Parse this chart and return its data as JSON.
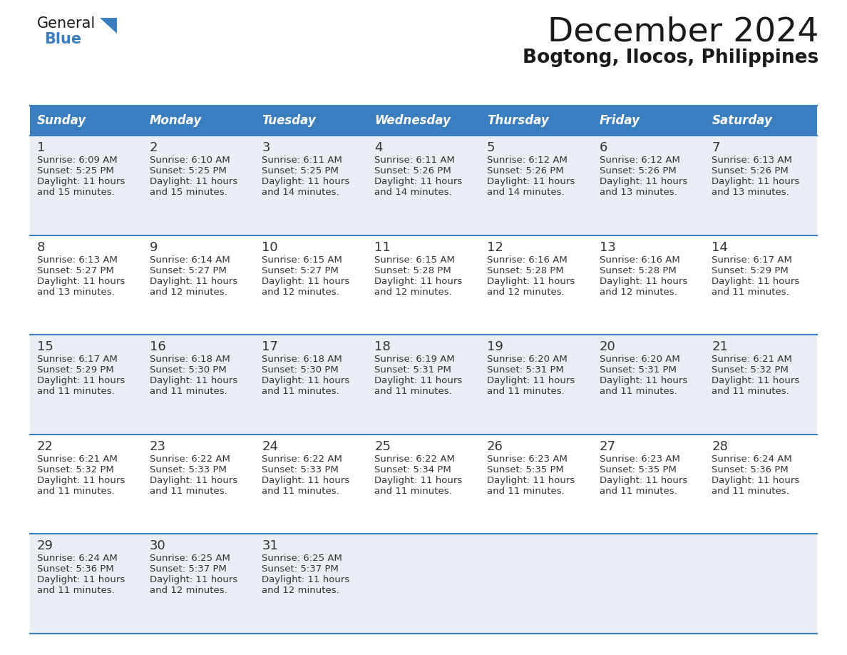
{
  "title": "December 2024",
  "subtitle": "Bogtong, Ilocos, Philippines",
  "days_of_week": [
    "Sunday",
    "Monday",
    "Tuesday",
    "Wednesday",
    "Thursday",
    "Friday",
    "Saturday"
  ],
  "header_bg": "#3a7ebf",
  "header_text_color": "#ffffff",
  "row_bg_odd": "#e8eef4",
  "row_bg_even": "#ffffff",
  "cell_text_color": "#333333",
  "grid_color": "#3a7ebf",
  "title_color": "#1a1a1a",
  "subtitle_color": "#1a1a1a",
  "blue_color": "#3a7ebf",
  "calendar": [
    [
      {
        "day": 1,
        "sunrise": "6:09 AM",
        "sunset": "5:25 PM",
        "daylight": "11 hours",
        "daylight2": "and 15 minutes."
      },
      {
        "day": 2,
        "sunrise": "6:10 AM",
        "sunset": "5:25 PM",
        "daylight": "11 hours",
        "daylight2": "and 15 minutes."
      },
      {
        "day": 3,
        "sunrise": "6:11 AM",
        "sunset": "5:25 PM",
        "daylight": "11 hours",
        "daylight2": "and 14 minutes."
      },
      {
        "day": 4,
        "sunrise": "6:11 AM",
        "sunset": "5:26 PM",
        "daylight": "11 hours",
        "daylight2": "and 14 minutes."
      },
      {
        "day": 5,
        "sunrise": "6:12 AM",
        "sunset": "5:26 PM",
        "daylight": "11 hours",
        "daylight2": "and 14 minutes."
      },
      {
        "day": 6,
        "sunrise": "6:12 AM",
        "sunset": "5:26 PM",
        "daylight": "11 hours",
        "daylight2": "and 13 minutes."
      },
      {
        "day": 7,
        "sunrise": "6:13 AM",
        "sunset": "5:26 PM",
        "daylight": "11 hours",
        "daylight2": "and 13 minutes."
      }
    ],
    [
      {
        "day": 8,
        "sunrise": "6:13 AM",
        "sunset": "5:27 PM",
        "daylight": "11 hours",
        "daylight2": "and 13 minutes."
      },
      {
        "day": 9,
        "sunrise": "6:14 AM",
        "sunset": "5:27 PM",
        "daylight": "11 hours",
        "daylight2": "and 12 minutes."
      },
      {
        "day": 10,
        "sunrise": "6:15 AM",
        "sunset": "5:27 PM",
        "daylight": "11 hours",
        "daylight2": "and 12 minutes."
      },
      {
        "day": 11,
        "sunrise": "6:15 AM",
        "sunset": "5:28 PM",
        "daylight": "11 hours",
        "daylight2": "and 12 minutes."
      },
      {
        "day": 12,
        "sunrise": "6:16 AM",
        "sunset": "5:28 PM",
        "daylight": "11 hours",
        "daylight2": "and 12 minutes."
      },
      {
        "day": 13,
        "sunrise": "6:16 AM",
        "sunset": "5:28 PM",
        "daylight": "11 hours",
        "daylight2": "and 12 minutes."
      },
      {
        "day": 14,
        "sunrise": "6:17 AM",
        "sunset": "5:29 PM",
        "daylight": "11 hours",
        "daylight2": "and 11 minutes."
      }
    ],
    [
      {
        "day": 15,
        "sunrise": "6:17 AM",
        "sunset": "5:29 PM",
        "daylight": "11 hours",
        "daylight2": "and 11 minutes."
      },
      {
        "day": 16,
        "sunrise": "6:18 AM",
        "sunset": "5:30 PM",
        "daylight": "11 hours",
        "daylight2": "and 11 minutes."
      },
      {
        "day": 17,
        "sunrise": "6:18 AM",
        "sunset": "5:30 PM",
        "daylight": "11 hours",
        "daylight2": "and 11 minutes."
      },
      {
        "day": 18,
        "sunrise": "6:19 AM",
        "sunset": "5:31 PM",
        "daylight": "11 hours",
        "daylight2": "and 11 minutes."
      },
      {
        "day": 19,
        "sunrise": "6:20 AM",
        "sunset": "5:31 PM",
        "daylight": "11 hours",
        "daylight2": "and 11 minutes."
      },
      {
        "day": 20,
        "sunrise": "6:20 AM",
        "sunset": "5:31 PM",
        "daylight": "11 hours",
        "daylight2": "and 11 minutes."
      },
      {
        "day": 21,
        "sunrise": "6:21 AM",
        "sunset": "5:32 PM",
        "daylight": "11 hours",
        "daylight2": "and 11 minutes."
      }
    ],
    [
      {
        "day": 22,
        "sunrise": "6:21 AM",
        "sunset": "5:32 PM",
        "daylight": "11 hours",
        "daylight2": "and 11 minutes."
      },
      {
        "day": 23,
        "sunrise": "6:22 AM",
        "sunset": "5:33 PM",
        "daylight": "11 hours",
        "daylight2": "and 11 minutes."
      },
      {
        "day": 24,
        "sunrise": "6:22 AM",
        "sunset": "5:33 PM",
        "daylight": "11 hours",
        "daylight2": "and 11 minutes."
      },
      {
        "day": 25,
        "sunrise": "6:22 AM",
        "sunset": "5:34 PM",
        "daylight": "11 hours",
        "daylight2": "and 11 minutes."
      },
      {
        "day": 26,
        "sunrise": "6:23 AM",
        "sunset": "5:35 PM",
        "daylight": "11 hours",
        "daylight2": "and 11 minutes."
      },
      {
        "day": 27,
        "sunrise": "6:23 AM",
        "sunset": "5:35 PM",
        "daylight": "11 hours",
        "daylight2": "and 11 minutes."
      },
      {
        "day": 28,
        "sunrise": "6:24 AM",
        "sunset": "5:36 PM",
        "daylight": "11 hours",
        "daylight2": "and 11 minutes."
      }
    ],
    [
      {
        "day": 29,
        "sunrise": "6:24 AM",
        "sunset": "5:36 PM",
        "daylight": "11 hours",
        "daylight2": "and 11 minutes."
      },
      {
        "day": 30,
        "sunrise": "6:25 AM",
        "sunset": "5:37 PM",
        "daylight": "11 hours",
        "daylight2": "and 12 minutes."
      },
      {
        "day": 31,
        "sunrise": "6:25 AM",
        "sunset": "5:37 PM",
        "daylight": "11 hours",
        "daylight2": "and 12 minutes."
      },
      null,
      null,
      null,
      null
    ]
  ]
}
